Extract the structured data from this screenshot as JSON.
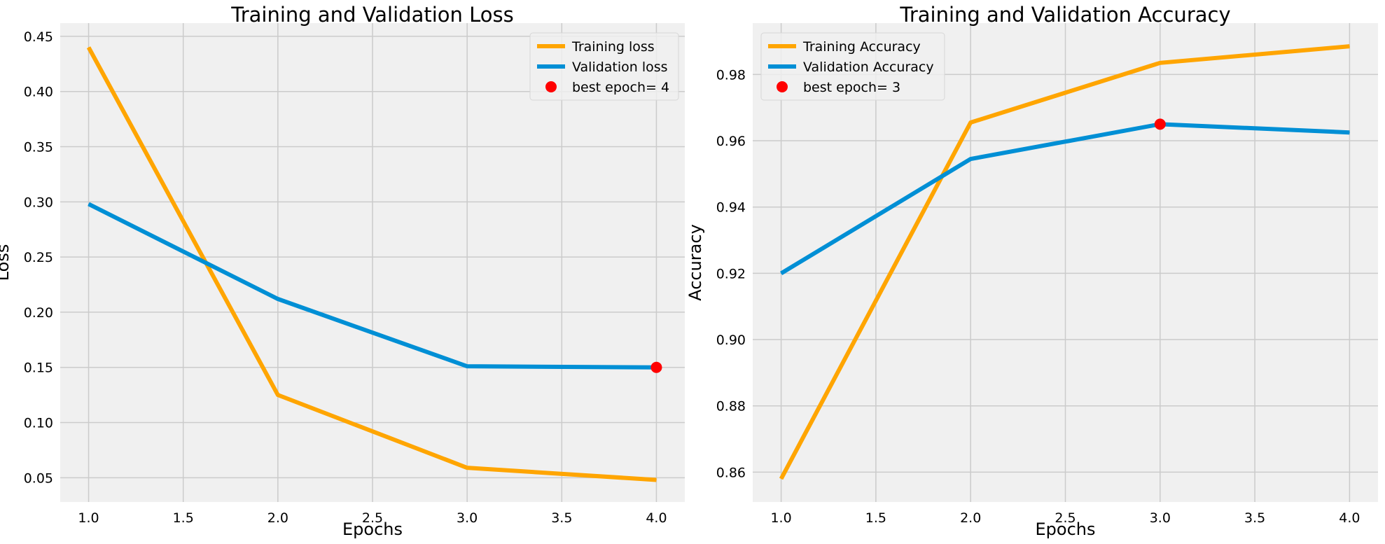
{
  "chart_data": [
    {
      "type": "line",
      "title": "Training and Validation Loss",
      "xlabel": "Epochs",
      "ylabel": "Loss",
      "x": [
        1,
        2,
        3,
        4
      ],
      "xlim": [
        0.85,
        4.15
      ],
      "ylim": [
        0.028,
        0.462
      ],
      "xticks": [
        1.0,
        1.5,
        2.0,
        2.5,
        3.0,
        3.5,
        4.0
      ],
      "xtick_labels": [
        "1.0",
        "1.5",
        "2.0",
        "2.5",
        "3.0",
        "3.5",
        "4.0"
      ],
      "yticks": [
        0.05,
        0.1,
        0.15,
        0.2,
        0.25,
        0.3,
        0.35,
        0.4,
        0.45
      ],
      "ytick_labels": [
        "0.05",
        "0.10",
        "0.15",
        "0.20",
        "0.25",
        "0.30",
        "0.35",
        "0.40",
        "0.45"
      ],
      "series": [
        {
          "name": "Training loss",
          "values": [
            0.44,
            0.125,
            0.059,
            0.048
          ],
          "color": "#ffa500"
        },
        {
          "name": "Validation loss",
          "values": [
            0.298,
            0.212,
            0.151,
            0.15
          ],
          "color": "#008fd5"
        }
      ],
      "best_point": {
        "label": "best epoch= 4",
        "x": 4,
        "y": 0.15,
        "color": "#ff0000"
      },
      "legend": "upper right",
      "grid": true
    },
    {
      "type": "line",
      "title": "Training and Validation Accuracy",
      "xlabel": "Epochs",
      "ylabel": "Accuracy",
      "x": [
        1,
        2,
        3,
        4
      ],
      "xlim": [
        0.85,
        4.15
      ],
      "ylim": [
        0.851,
        0.9955
      ],
      "xticks": [
        1.0,
        1.5,
        2.0,
        2.5,
        3.0,
        3.5,
        4.0
      ],
      "xtick_labels": [
        "1.0",
        "1.5",
        "2.0",
        "2.5",
        "3.0",
        "3.5",
        "4.0"
      ],
      "yticks": [
        0.86,
        0.88,
        0.9,
        0.92,
        0.94,
        0.96,
        0.98
      ],
      "ytick_labels": [
        "0.86",
        "0.88",
        "0.90",
        "0.92",
        "0.94",
        "0.96",
        "0.98"
      ],
      "series": [
        {
          "name": "Training Accuracy",
          "values": [
            0.858,
            0.9655,
            0.9835,
            0.9885
          ],
          "color": "#ffa500"
        },
        {
          "name": "Validation Accuracy",
          "values": [
            0.92,
            0.9545,
            0.965,
            0.9625
          ],
          "color": "#008fd5"
        }
      ],
      "best_point": {
        "label": "best epoch= 3",
        "x": 3,
        "y": 0.965,
        "color": "#ff0000"
      },
      "legend": "upper left",
      "grid": true
    }
  ],
  "style": {
    "plot_background": "#f0f0f0",
    "grid_color": "#cbcbcb"
  }
}
